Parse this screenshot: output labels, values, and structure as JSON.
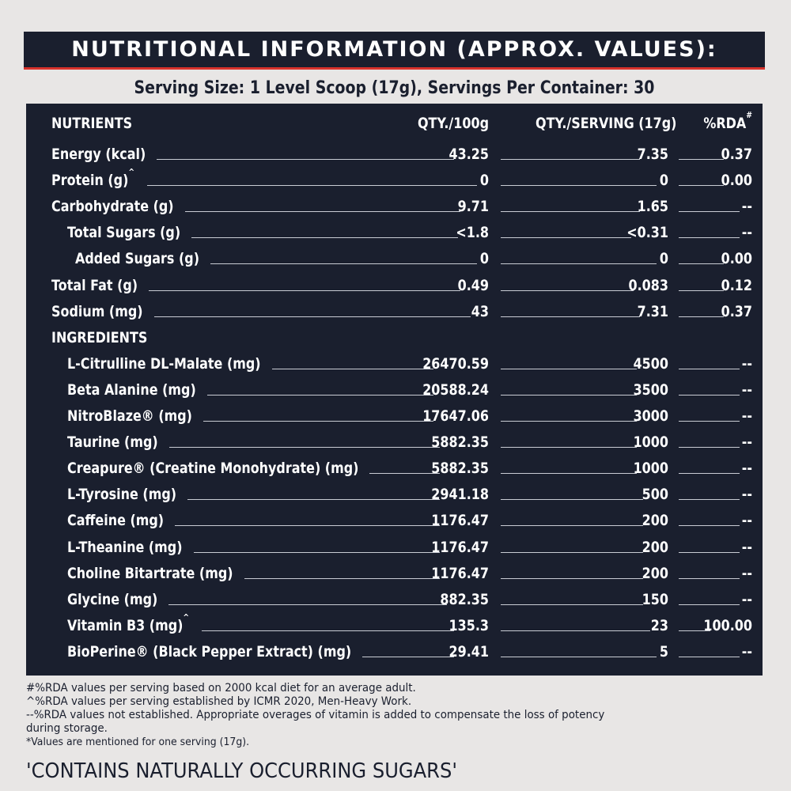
{
  "header": {
    "title": "NUTRITIONAL INFORMATION (APPROX. VALUES):"
  },
  "serving": "Serving Size: 1 Level Scoop (17g), Servings Per Container: 30",
  "columns": {
    "nutrients": "NUTRIENTS",
    "qty100": "QTY./100g",
    "qtyServing": "QTY./SERVING (17g)",
    "rda": "%RDA",
    "rda_mark": "#"
  },
  "nutrients": [
    {
      "name": "Energy (kcal)",
      "mark": "",
      "indent": 0,
      "qty100": "43.25",
      "serving": "7.35",
      "rda": "0.37"
    },
    {
      "name": "Protein (g)",
      "mark": "^",
      "indent": 0,
      "qty100": "0",
      "serving": "0",
      "rda": "0.00"
    },
    {
      "name": "Carbohydrate (g)",
      "mark": "",
      "indent": 0,
      "qty100": "9.71",
      "serving": "1.65",
      "rda": "--"
    },
    {
      "name": "Total Sugars (g)",
      "mark": "",
      "indent": 1,
      "qty100": "<1.8",
      "serving": "<0.31",
      "rda": "--"
    },
    {
      "name": "Added Sugars (g)",
      "mark": "",
      "indent": 2,
      "qty100": "0",
      "serving": "0",
      "rda": "0.00"
    },
    {
      "name": "Total Fat (g)",
      "mark": "",
      "indent": 0,
      "qty100": "0.49",
      "serving": "0.083",
      "rda": "0.12"
    },
    {
      "name": "Sodium (mg)",
      "mark": "",
      "indent": 0,
      "qty100": "43",
      "serving": "7.31",
      "rda": "0.37"
    }
  ],
  "ingredients_heading": "INGREDIENTS",
  "ingredients": [
    {
      "name": "L-Citrulline DL-Malate (mg)",
      "mark": "",
      "qty100": "26470.59",
      "serving": "4500",
      "rda": "--"
    },
    {
      "name": "Beta Alanine (mg)",
      "mark": "",
      "qty100": "20588.24",
      "serving": "3500",
      "rda": "--"
    },
    {
      "name": "NitroBlaze® (mg)",
      "mark": "",
      "qty100": "17647.06",
      "serving": "3000",
      "rda": "--"
    },
    {
      "name": "Taurine (mg)",
      "mark": "",
      "qty100": "5882.35",
      "serving": "1000",
      "rda": "--"
    },
    {
      "name": "Creapure® (Creatine Monohydrate) (mg)",
      "mark": "",
      "qty100": "5882.35",
      "serving": "1000",
      "rda": "--"
    },
    {
      "name": "L-Tyrosine (mg)",
      "mark": "",
      "qty100": "2941.18",
      "serving": "500",
      "rda": "--"
    },
    {
      "name": "Caffeine (mg)",
      "mark": "",
      "qty100": "1176.47",
      "serving": "200",
      "rda": "--"
    },
    {
      "name": "L-Theanine (mg)",
      "mark": "",
      "qty100": "1176.47",
      "serving": "200",
      "rda": "--"
    },
    {
      "name": "Choline Bitartrate (mg)",
      "mark": "",
      "qty100": "1176.47",
      "serving": "200",
      "rda": "--"
    },
    {
      "name": "Glycine (mg)",
      "mark": "",
      "qty100": "882.35",
      "serving": "150",
      "rda": "--"
    },
    {
      "name": "Vitamin B3 (mg)",
      "mark": "^",
      "qty100": "135.3",
      "serving": "23",
      "rda": "100.00"
    },
    {
      "name": "BioPerine® (Black Pepper Extract) (mg)",
      "mark": "",
      "qty100": "29.41",
      "serving": "5",
      "rda": "--"
    }
  ],
  "footnotes": [
    "#%RDA values per serving based on 2000 kcal diet for an average adult.",
    "^%RDA values per serving established by ICMR 2020, Men-Heavy Work.",
    "--%RDA values not established. Appropriate overages of vitamin is added to compensate the loss of potency",
    "during storage.",
    "*Values are mentioned for one serving (17g)."
  ],
  "sugars_note": "'CONTAINS NATURALLY OCCURRING SUGARS'"
}
